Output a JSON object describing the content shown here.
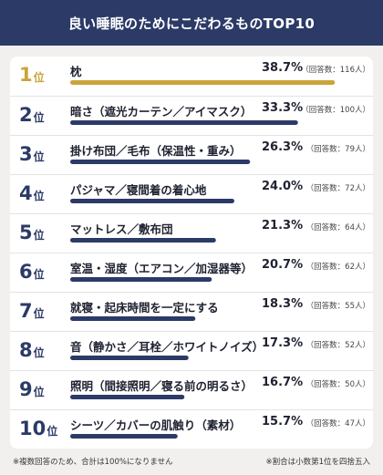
{
  "header": {
    "title": "良い睡眠のためにこだわるものTOP10"
  },
  "rank_unit": "位",
  "colors": {
    "navy": "#2b3a67",
    "gold": "#c9a43a",
    "background": "#f1f0ee"
  },
  "footer": {
    "left": "※複数回答のため、合計は100%になりません",
    "right": "※割合は小数第1位を四捨五入"
  },
  "chart_data": {
    "type": "bar",
    "orientation": "horizontal",
    "xlim": [
      0,
      40
    ],
    "rows": [
      {
        "rank": "1",
        "label": "枕",
        "value": 38.7,
        "value_label": "38.7%",
        "count_label": "（回答数：116人）"
      },
      {
        "rank": "2",
        "label": "暗さ（遮光カーテン／アイマスク）",
        "value": 33.3,
        "value_label": "33.3%",
        "count_label": "（回答数：100人）"
      },
      {
        "rank": "3",
        "label": "掛け布団／毛布（保温性・重み）",
        "value": 26.3,
        "value_label": "26.3%",
        "count_label": "（回答数：79人）"
      },
      {
        "rank": "4",
        "label": "パジャマ／寝間着の着心地",
        "value": 24.0,
        "value_label": "24.0%",
        "count_label": "（回答数：72人）"
      },
      {
        "rank": "5",
        "label": "マットレス／敷布団",
        "value": 21.3,
        "value_label": "21.3%",
        "count_label": "（回答数：64人）"
      },
      {
        "rank": "6",
        "label": "室温・湿度（エアコン／加湿器等）",
        "value": 20.7,
        "value_label": "20.7%",
        "count_label": "（回答数：62人）"
      },
      {
        "rank": "7",
        "label": "就寝・起床時間を一定にする",
        "value": 18.3,
        "value_label": "18.3%",
        "count_label": "（回答数：55人）"
      },
      {
        "rank": "8",
        "label": "音（静かさ／耳栓／ホワイトノイズ）",
        "value": 17.3,
        "value_label": "17.3%",
        "count_label": "（回答数：52人）"
      },
      {
        "rank": "9",
        "label": "照明（間接照明／寝る前の明るさ）",
        "value": 16.7,
        "value_label": "16.7%",
        "count_label": "（回答数：50人）"
      },
      {
        "rank": "10",
        "label": "シーツ／カバーの肌触り（素材）",
        "value": 15.7,
        "value_label": "15.7%",
        "count_label": "（回答数：47人）"
      }
    ]
  }
}
